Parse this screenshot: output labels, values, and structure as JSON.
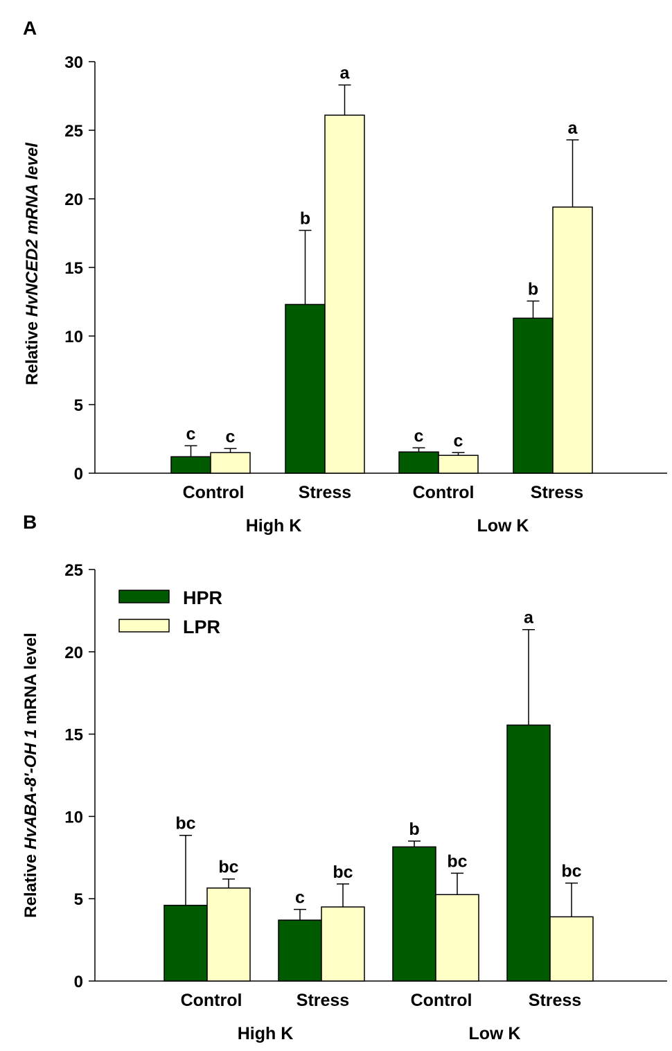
{
  "colors": {
    "hpr": "#005a00",
    "lpr": "#ffffc6",
    "stroke": "#000000"
  },
  "chart_data": [
    {
      "panel_label": "A",
      "type": "bar",
      "ylabel_prefix": "Relative ",
      "ylabel_italic": "HvNCED2 mRNA level",
      "ylabel_suffix": "",
      "ylim": [
        0,
        30
      ],
      "yticks": [
        0,
        5,
        10,
        15,
        20,
        25,
        30
      ],
      "groups": [
        {
          "label": "Control",
          "supergroup": "High K",
          "hpr": 1.2,
          "hpr_err": 0.8,
          "lpr": 1.5,
          "lpr_err": 0.3,
          "hpr_letter": "c",
          "lpr_letter": "c"
        },
        {
          "label": "Stress",
          "supergroup": "High K",
          "hpr": 12.3,
          "hpr_err": 5.4,
          "lpr": 26.1,
          "lpr_err": 2.2,
          "hpr_letter": "b",
          "lpr_letter": "a"
        },
        {
          "label": "Control",
          "supergroup": "Low K",
          "hpr": 1.55,
          "hpr_err": 0.3,
          "lpr": 1.3,
          "lpr_err": 0.2,
          "hpr_letter": "c",
          "lpr_letter": "c"
        },
        {
          "label": "Stress",
          "supergroup": "Low K",
          "hpr": 11.3,
          "hpr_err": 1.25,
          "lpr": 19.4,
          "lpr_err": 4.9,
          "hpr_letter": "b",
          "lpr_letter": "a"
        }
      ],
      "supergroups": [
        "High K",
        "Low K"
      ]
    },
    {
      "panel_label": "B",
      "type": "bar",
      "ylabel_prefix": "Relative ",
      "ylabel_italic": "HvABA-8'-OH 1",
      "ylabel_suffix": " mRNA level",
      "ylim": [
        0,
        25
      ],
      "yticks": [
        0,
        5,
        10,
        15,
        20,
        25
      ],
      "legend": [
        {
          "name": "HPR",
          "color_key": "hpr"
        },
        {
          "name": "LPR",
          "color_key": "lpr"
        }
      ],
      "groups": [
        {
          "label": "Control",
          "supergroup": "High K",
          "hpr": 4.6,
          "hpr_err": 4.25,
          "lpr": 5.65,
          "lpr_err": 0.55,
          "hpr_letter": "bc",
          "lpr_letter": "bc"
        },
        {
          "label": "Stress",
          "supergroup": "High K",
          "hpr": 3.7,
          "hpr_err": 0.65,
          "lpr": 4.5,
          "lpr_err": 1.4,
          "hpr_letter": "c",
          "lpr_letter": "bc"
        },
        {
          "label": "Control",
          "supergroup": "Low K",
          "hpr": 8.15,
          "hpr_err": 0.35,
          "lpr": 5.25,
          "lpr_err": 1.3,
          "hpr_letter": "b",
          "lpr_letter": "bc"
        },
        {
          "label": "Stress",
          "supergroup": "Low K",
          "hpr": 15.55,
          "hpr_err": 5.8,
          "lpr": 3.9,
          "lpr_err": 2.05,
          "hpr_letter": "a",
          "lpr_letter": "bc"
        }
      ],
      "supergroups": [
        "High K",
        "Low K"
      ]
    }
  ]
}
